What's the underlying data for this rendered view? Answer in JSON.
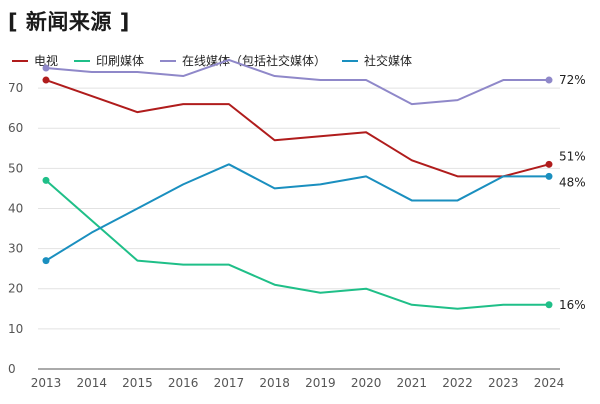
{
  "title": "[ 新闻来源 ]",
  "chart_data": {
    "type": "line",
    "title": "[ 新闻来源 ]",
    "xlabel": "",
    "ylabel": "",
    "x": [
      "2013",
      "2014",
      "2015",
      "2016",
      "2017",
      "2018",
      "2019",
      "2020",
      "2021",
      "2022",
      "2023",
      "2024"
    ],
    "ylim": [
      0,
      75
    ],
    "yticks": [
      0,
      10,
      20,
      30,
      40,
      50,
      60,
      70
    ],
    "grid": true,
    "legend_position": "top-left",
    "series": [
      {
        "name": "电视",
        "color": "#b01c1c",
        "values": [
          72,
          68,
          64,
          66,
          66,
          57,
          58,
          59,
          52,
          48,
          48,
          51
        ],
        "end_label": "51%"
      },
      {
        "name": "印刷媒体",
        "color": "#1fbf88",
        "values": [
          47,
          37,
          27,
          26,
          26,
          21,
          19,
          20,
          16,
          15,
          16,
          16
        ],
        "end_label": "16%"
      },
      {
        "name": "在线媒体（包括社交媒体）",
        "color": "#8f88c9",
        "values": [
          75,
          74,
          74,
          73,
          77,
          73,
          72,
          72,
          66,
          67,
          72,
          72
        ],
        "end_label": "72%"
      },
      {
        "name": "社交媒体",
        "color": "#1a8fbf",
        "values": [
          27,
          34,
          40,
          46,
          51,
          45,
          46,
          48,
          42,
          42,
          48,
          48
        ],
        "end_label": "48%"
      }
    ]
  }
}
